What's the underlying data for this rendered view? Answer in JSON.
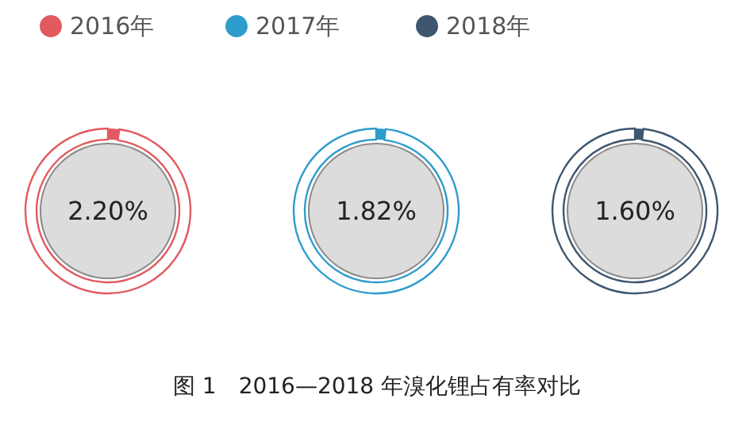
{
  "chart_data": [
    {
      "type": "donut",
      "categories": [
        "2016年",
        null
      ],
      "values": [
        2.2,
        97.8
      ],
      "colors": [
        "#e15a60",
        "#ffffff"
      ],
      "annotations": [
        "2.20%"
      ],
      "legend": "top"
    },
    {
      "type": "donut",
      "categories": [
        "2017年",
        null
      ],
      "values": [
        1.82,
        98.18
      ],
      "colors": [
        "#2e9ccd",
        "#ffffff"
      ],
      "annotations": [
        "1.82%"
      ],
      "legend": "top",
      "title": "图 1　2016—2018 年溴化锂占有率对比"
    },
    {
      "type": "donut",
      "categories": [
        "2018年",
        null
      ],
      "values": [
        1.6,
        98.4
      ],
      "colors": [
        "#3e566e",
        "#ffffff"
      ],
      "annotations": [
        "1.60%"
      ],
      "legend": "top"
    }
  ]
}
